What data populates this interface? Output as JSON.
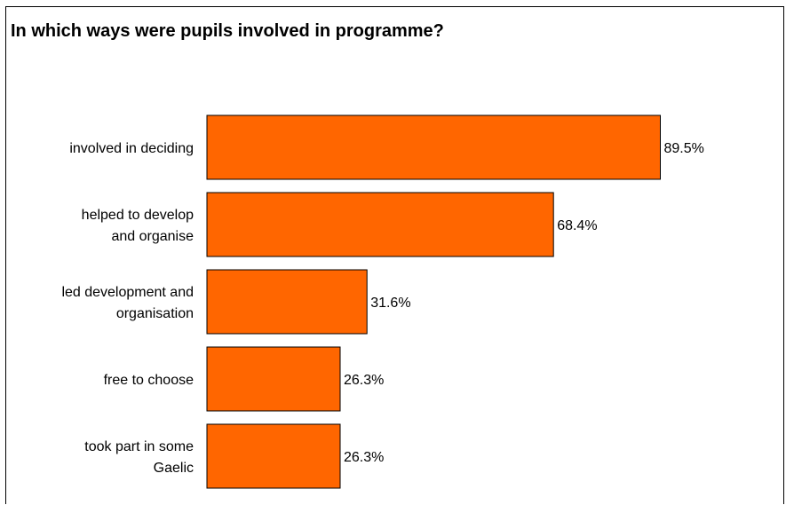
{
  "chart_data": {
    "type": "bar",
    "orientation": "horizontal",
    "title": "In which ways were pupils involved in programme?",
    "categories": [
      "involved in deciding",
      "helped to develop and organise",
      "led development and organisation",
      "free to choose",
      "took part in some Gaelic"
    ],
    "category_lines": [
      [
        "involved in deciding"
      ],
      [
        "helped to develop",
        "and organise"
      ],
      [
        "led development and",
        "organisation"
      ],
      [
        "free to choose"
      ],
      [
        "took part in some",
        "Gaelic"
      ]
    ],
    "values": [
      89.5,
      68.4,
      31.6,
      26.3,
      26.3
    ],
    "value_labels": [
      "89.5%",
      "68.4%",
      "31.6%",
      "26.3%",
      "26.3%"
    ],
    "unit": "%",
    "bar_color": "#ff6600",
    "bar_stroke": "#000000",
    "grid": false,
    "legend": "none"
  }
}
